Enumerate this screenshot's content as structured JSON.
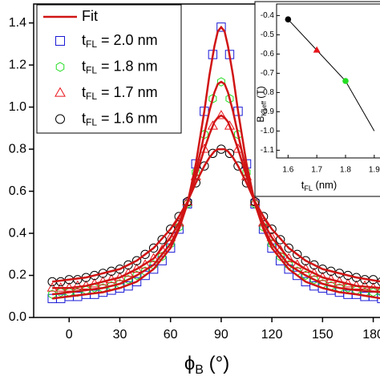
{
  "chart_data": {
    "type": "scatter",
    "xlabel": [
      "ϕ",
      "B",
      " (°)"
    ],
    "xlim": [
      -21,
      184
    ],
    "ylim": [
      0,
      1.49
    ],
    "xticks": [
      0,
      30,
      60,
      90,
      120,
      150,
      180
    ],
    "yticks": [
      {
        "value": 0,
        "label": "0.0"
      },
      0.2,
      0.4,
      0.6,
      0.8,
      {
        "value": 1,
        "label": "1.0"
      },
      1.2,
      1.4
    ],
    "x": [
      -10,
      -5,
      0,
      5,
      10,
      15,
      20,
      25,
      30,
      35,
      40,
      45,
      50,
      55,
      60,
      65,
      70,
      75,
      80,
      85,
      90,
      95,
      100,
      105,
      110,
      115,
      120,
      125,
      130,
      135,
      140,
      145,
      150,
      155,
      160,
      165,
      170,
      175,
      180,
      185
    ],
    "series": [
      {
        "name": [
          "t",
          "FL",
          " = 2.0 nm"
        ],
        "color": "#1a1ad6",
        "marker": "square",
        "values": [
          0.09,
          0.09,
          0.1,
          0.1,
          0.11,
          0.11,
          0.12,
          0.13,
          0.14,
          0.15,
          0.17,
          0.2,
          0.23,
          0.27,
          0.33,
          0.42,
          0.54,
          0.73,
          0.98,
          1.25,
          1.38,
          1.25,
          0.98,
          0.73,
          0.54,
          0.42,
          0.33,
          0.27,
          0.23,
          0.2,
          0.17,
          0.15,
          0.14,
          0.13,
          0.12,
          0.11,
          0.11,
          0.1,
          0.1,
          0.09
        ]
      },
      {
        "name": [
          "t",
          "FL",
          " = 1.8 nm"
        ],
        "color": "#22dd22",
        "marker": "hexagon",
        "values": [
          0.11,
          0.12,
          0.12,
          0.12,
          0.13,
          0.14,
          0.14,
          0.15,
          0.16,
          0.18,
          0.2,
          0.22,
          0.25,
          0.29,
          0.35,
          0.43,
          0.54,
          0.69,
          0.87,
          1.04,
          1.12,
          1.04,
          0.87,
          0.69,
          0.54,
          0.43,
          0.35,
          0.29,
          0.25,
          0.22,
          0.2,
          0.18,
          0.16,
          0.15,
          0.14,
          0.14,
          0.13,
          0.12,
          0.12,
          0.12
        ]
      },
      {
        "name": [
          "t",
          "FL",
          " = 1.7 nm"
        ],
        "color": "#e8141a",
        "marker": "triangle",
        "values": [
          0.14,
          0.14,
          0.14,
          0.15,
          0.15,
          0.16,
          0.17,
          0.18,
          0.19,
          0.21,
          0.23,
          0.25,
          0.28,
          0.32,
          0.38,
          0.45,
          0.55,
          0.67,
          0.8,
          0.91,
          0.96,
          0.91,
          0.8,
          0.67,
          0.55,
          0.45,
          0.38,
          0.32,
          0.28,
          0.25,
          0.23,
          0.21,
          0.19,
          0.18,
          0.17,
          0.16,
          0.15,
          0.15,
          0.14,
          0.14
        ]
      },
      {
        "name": [
          "t",
          "FL",
          " = 1.6 nm"
        ],
        "color": "#000000",
        "marker": "circle",
        "values": [
          0.17,
          0.17,
          0.18,
          0.18,
          0.19,
          0.2,
          0.21,
          0.22,
          0.23,
          0.25,
          0.27,
          0.3,
          0.33,
          0.37,
          0.42,
          0.48,
          0.55,
          0.64,
          0.72,
          0.78,
          0.8,
          0.78,
          0.72,
          0.64,
          0.55,
          0.48,
          0.42,
          0.37,
          0.33,
          0.3,
          0.27,
          0.25,
          0.23,
          0.22,
          0.21,
          0.2,
          0.19,
          0.18,
          0.18,
          0.17
        ]
      }
    ],
    "fit": {
      "name": "Fit",
      "color": "#d01414",
      "x": [
        -10,
        0,
        10,
        20,
        30,
        40,
        50,
        60,
        65,
        70,
        75,
        80,
        83,
        86,
        88,
        90,
        92,
        94,
        97,
        100,
        105,
        110,
        115,
        120,
        130,
        140,
        150,
        160,
        170,
        185
      ],
      "curves": [
        [
          0.09,
          0.1,
          0.11,
          0.12,
          0.14,
          0.17,
          0.23,
          0.33,
          0.42,
          0.54,
          0.73,
          0.98,
          1.15,
          1.29,
          1.36,
          1.38,
          1.36,
          1.29,
          1.15,
          0.98,
          0.73,
          0.54,
          0.42,
          0.33,
          0.23,
          0.17,
          0.14,
          0.12,
          0.11,
          0.09
        ],
        [
          0.11,
          0.12,
          0.13,
          0.14,
          0.16,
          0.2,
          0.25,
          0.35,
          0.43,
          0.54,
          0.69,
          0.87,
          0.98,
          1.07,
          1.11,
          1.12,
          1.11,
          1.07,
          0.98,
          0.87,
          0.69,
          0.54,
          0.43,
          0.35,
          0.25,
          0.2,
          0.16,
          0.14,
          0.13,
          0.12
        ],
        [
          0.14,
          0.14,
          0.15,
          0.17,
          0.19,
          0.23,
          0.28,
          0.38,
          0.45,
          0.55,
          0.67,
          0.8,
          0.87,
          0.93,
          0.95,
          0.96,
          0.95,
          0.93,
          0.87,
          0.8,
          0.67,
          0.55,
          0.45,
          0.38,
          0.28,
          0.23,
          0.19,
          0.17,
          0.15,
          0.14
        ],
        [
          0.17,
          0.18,
          0.19,
          0.21,
          0.23,
          0.27,
          0.33,
          0.42,
          0.48,
          0.55,
          0.64,
          0.72,
          0.76,
          0.79,
          0.8,
          0.8,
          0.8,
          0.79,
          0.76,
          0.72,
          0.64,
          0.55,
          0.48,
          0.42,
          0.33,
          0.27,
          0.23,
          0.21,
          0.19,
          0.17
        ]
      ]
    },
    "legend": "upper left",
    "inset": {
      "type": "line",
      "xlabel": [
        "t",
        "FL",
        " (nm)"
      ],
      "ylabel": [
        "B",
        "K1eff",
        " (T)"
      ],
      "xlim": [
        1.56,
        1.92
      ],
      "ylim": [
        -1.14,
        -0.34
      ],
      "xticks": [
        1.6,
        1.7,
        1.8,
        1.9
      ],
      "yticks": [
        -0.4,
        -0.5,
        -0.6,
        -0.7,
        -0.8,
        -0.9,
        {
          "value": -1,
          "label": "-1.0"
        },
        -1.1
      ],
      "x": [
        1.6,
        1.7,
        1.8
      ],
      "values": [
        -0.42,
        -0.58,
        -0.74
      ],
      "colors": [
        "#000000",
        "#e8141a",
        "#22dd22"
      ],
      "markers": [
        "circle",
        "triangle",
        "circle"
      ],
      "line": {
        "color": "#000000",
        "x": [
          1.6,
          1.7,
          1.8,
          1.9
        ],
        "values": [
          -0.42,
          -0.58,
          -0.74,
          -1.0
        ]
      }
    }
  }
}
